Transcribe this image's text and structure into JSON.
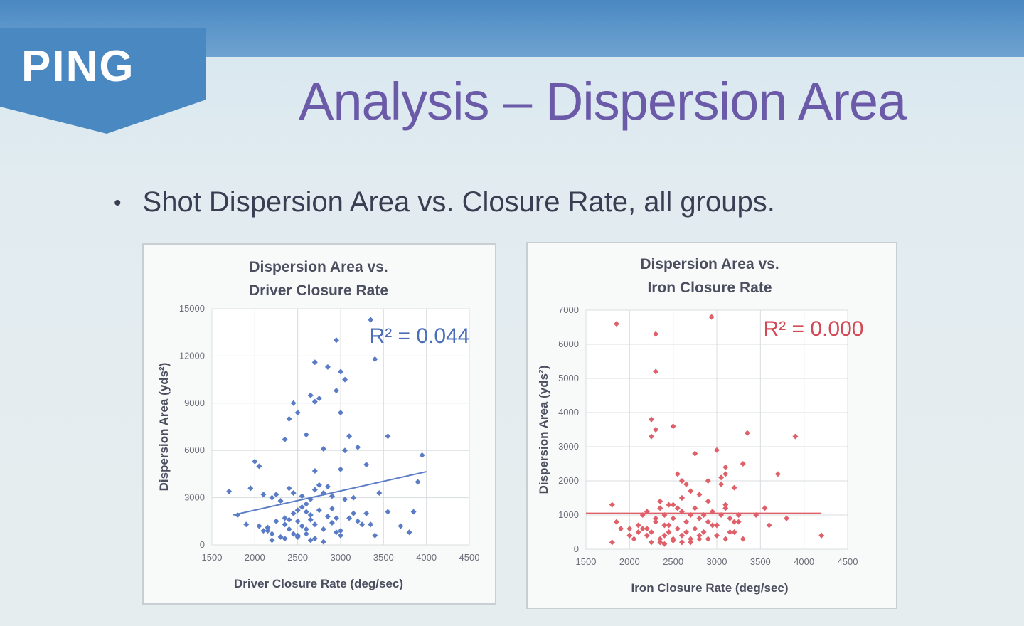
{
  "slide": {
    "logo": "PING",
    "title": "Analysis – Dispersion Area",
    "bullet": "Shot Dispersion Area vs. Closure Rate, all groups."
  },
  "colors": {
    "driver": "#5a7cc6",
    "iron": "#e0606a",
    "title": "#6a5aa8",
    "banner": "#4a88c2"
  },
  "chart_data": [
    {
      "type": "scatter",
      "title": [
        "Dispersion Area vs.",
        "Driver Closure Rate"
      ],
      "xlabel": "Driver Closure Rate (deg/sec)",
      "ylabel": "Dispersion Area (yds²)",
      "xlim": [
        1500,
        4500
      ],
      "ylim": [
        0,
        15000
      ],
      "xticks": [
        1500,
        2000,
        2500,
        3000,
        3500,
        4000,
        4500
      ],
      "yticks": [
        0,
        3000,
        6000,
        9000,
        12000,
        15000
      ],
      "grid": true,
      "annotation": "R² = 0.044",
      "trendline": {
        "x": [
          1750,
          4000
        ],
        "y": [
          1900,
          4650
        ]
      },
      "series": [
        {
          "marker": "diamond",
          "x": [
            3350,
            2950,
            3400,
            2700,
            2850,
            3000,
            3050,
            2450,
            2750,
            2700,
            2950,
            2500,
            2400,
            2650,
            3000,
            2600,
            3100,
            2350,
            3550,
            2000,
            2050,
            2800,
            3200,
            3050,
            3950,
            2700,
            1950,
            3000,
            3300,
            2750,
            2400,
            2100,
            2200,
            2300,
            2250,
            2450,
            2550,
            2650,
            2700,
            2800,
            2850,
            2900,
            2600,
            2550,
            2500,
            2450,
            2600,
            2650,
            2750,
            2350,
            2400,
            2500,
            2850,
            2900,
            2950,
            3100,
            3150,
            3200,
            3250,
            3300,
            2550,
            2600,
            2700,
            2250,
            2350,
            2800,
            2950,
            3000,
            2050,
            2100,
            2150,
            2200,
            1700,
            1800,
            1900,
            2500,
            2650,
            2800,
            3800,
            3900,
            3850,
            3700,
            3550,
            3350,
            3450,
            3150,
            3050,
            2600,
            2700,
            2300,
            2450,
            2900,
            2500,
            2350,
            2650,
            3000,
            3400,
            2200,
            2150,
            2400
          ],
          "y": [
            14300,
            13000,
            11800,
            11600,
            11300,
            11000,
            10500,
            9000,
            9300,
            9100,
            9800,
            8400,
            8000,
            9500,
            8400,
            7000,
            6900,
            6700,
            6900,
            5300,
            5000,
            6100,
            6200,
            6000,
            5700,
            4700,
            3600,
            4800,
            5100,
            3800,
            3600,
            3200,
            3000,
            2800,
            3200,
            3300,
            3100,
            2900,
            3500,
            3300,
            3700,
            3100,
            2600,
            2400,
            2200,
            2000,
            2100,
            1900,
            2200,
            1700,
            1600,
            1500,
            1800,
            2300,
            1700,
            1700,
            2000,
            1500,
            1300,
            2000,
            1200,
            1000,
            1300,
            1500,
            1300,
            1000,
            800,
            600,
            1200,
            900,
            1100,
            700,
            3400,
            1900,
            1300,
            500,
            300,
            200,
            800,
            4000,
            2100,
            1200,
            2100,
            1300,
            3300,
            3000,
            2900,
            700,
            400,
            500,
            700,
            1400,
            600,
            400,
            1600,
            900,
            600,
            300,
            900,
            1000
          ]
        }
      ]
    },
    {
      "type": "scatter",
      "title": [
        "Dispersion Area vs.",
        "Iron Closure Rate"
      ],
      "xlabel": "Iron Closure Rate (deg/sec)",
      "ylabel": "Dispersion Area (yds²)",
      "xlim": [
        1500,
        4500
      ],
      "ylim": [
        0,
        7000
      ],
      "xticks": [
        1500,
        2000,
        2500,
        3000,
        3500,
        4000,
        4500
      ],
      "yticks": [
        0,
        1000,
        2000,
        3000,
        4000,
        5000,
        6000,
        7000
      ],
      "grid": true,
      "annotation": "R² = 0.000",
      "trendline": {
        "x": [
          1500,
          4200
        ],
        "y": [
          1050,
          1050
        ]
      },
      "series": [
        {
          "marker": "diamond",
          "x": [
            2940,
            1850,
            2300,
            2300,
            2250,
            2300,
            2250,
            2500,
            3350,
            3900,
            2750,
            3000,
            3300,
            3100,
            3700,
            3100,
            2900,
            2550,
            2600,
            3050,
            2700,
            2350,
            2450,
            2600,
            2800,
            2900,
            3550,
            3450,
            3600,
            3800,
            4200,
            2650,
            3050,
            3200,
            1800,
            1850,
            2000,
            2100,
            2150,
            2200,
            2300,
            2350,
            2400,
            2450,
            2500,
            2550,
            2600,
            2650,
            2700,
            2750,
            2800,
            2850,
            2900,
            2950,
            3000,
            3050,
            3100,
            3150,
            3200,
            3250,
            2000,
            2050,
            2100,
            2150,
            2200,
            2250,
            2350,
            2400,
            2450,
            2500,
            2550,
            2600,
            2650,
            2700,
            2750,
            2800,
            2850,
            2900,
            3000,
            3100,
            3200,
            3300,
            2250,
            2350,
            2400,
            2500,
            2600,
            2700,
            2800,
            1800,
            1900,
            2950,
            3150,
            3250,
            3100,
            2500,
            2300,
            2200,
            2400,
            2600
          ],
          "y": [
            6800,
            6600,
            6300,
            5200,
            3800,
            3500,
            3300,
            3600,
            3400,
            3300,
            2800,
            2900,
            2500,
            2400,
            2200,
            2200,
            2000,
            2200,
            2000,
            1900,
            1700,
            1400,
            1300,
            1500,
            1600,
            1400,
            1200,
            1000,
            700,
            900,
            400,
            1900,
            2100,
            1800,
            1300,
            800,
            600,
            700,
            1000,
            1100,
            900,
            1200,
            1000,
            700,
            1300,
            1200,
            1100,
            800,
            1000,
            1200,
            900,
            1000,
            800,
            1100,
            700,
            1000,
            1200,
            900,
            800,
            1000,
            400,
            300,
            500,
            600,
            400,
            500,
            300,
            400,
            500,
            300,
            600,
            400,
            500,
            300,
            600,
            400,
            500,
            300,
            400,
            300,
            500,
            300,
            200,
            200,
            150,
            250,
            200,
            200,
            300,
            200,
            600,
            700,
            500,
            800,
            1300,
            900,
            800,
            600,
            700,
            1500
          ]
        }
      ]
    }
  ]
}
